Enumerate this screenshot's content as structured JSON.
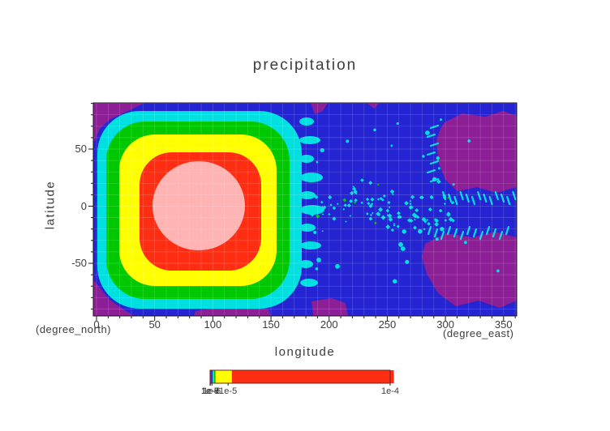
{
  "title": "precipitation",
  "axes": {
    "xlabel": "longitude",
    "ylabel": "latitude",
    "x_unit": "(degree_east)",
    "y_unit": "(degree_north)",
    "x_tick_labels": [
      "0",
      "50",
      "100",
      "150",
      "200",
      "250",
      "300",
      "350"
    ],
    "x_tick_values": [
      0,
      50,
      100,
      150,
      200,
      250,
      300,
      350
    ],
    "y_tick_labels": [
      "50",
      "0",
      "-50"
    ],
    "y_tick_values": [
      50,
      0,
      -50
    ],
    "minor_tick_step": 10
  },
  "colorbar": {
    "orientation": "horizontal",
    "ticks": [
      {
        "label": "1e-9",
        "value": 1e-09
      },
      {
        "label": "1e-8",
        "value": 1e-08
      },
      {
        "label": "1e-7",
        "value": 1e-07
      },
      {
        "label": "1e-6",
        "value": 1e-06
      },
      {
        "label": "1e-5",
        "value": 1e-05
      },
      {
        "label": "1e-4",
        "value": 0.0001
      }
    ]
  },
  "palette": {
    "purple": "#8c1e96",
    "blue": "#2424d2",
    "cyan": "#00e0e0",
    "green": "#00c800",
    "yellow": "#ffff00",
    "red": "#ff2d12",
    "pink": "#ffb3b3",
    "axis": "#1a1a1a",
    "text": "#3c3c3c",
    "grid": "#ffffff",
    "bar_frame": "#6b2424",
    "background": "#ffffff"
  },
  "chart_data": {
    "type": "heatmap",
    "variant": "filled_contour_map",
    "title": "precipitation",
    "xlabel": "longitude",
    "x_unit": "degree_east",
    "ylabel": "latitude",
    "y_unit": "degree_north",
    "xlim": [
      0,
      360
    ],
    "ylim": [
      -90,
      90
    ],
    "grid": true,
    "legend_position": "bottom-colorbar",
    "contour_levels": [
      1e-09,
      1e-08,
      1e-07,
      1e-06,
      1e-05,
      0.0001
    ],
    "level_colors": [
      "#8c1e96",
      "#2424d2",
      "#00e0e0",
      "#00c800",
      "#ffff00",
      "#ff2d12",
      "#ffb3b3"
    ],
    "colorbar_range": [
      1e-09,
      0.0001
    ],
    "features": [
      {
        "name": "primary-maximum",
        "center_lon": 90,
        "center_lat": 0,
        "lon_extent": [
          0,
          175
        ],
        "lat_extent": [
          -85,
          85
        ],
        "peak_value": ">= 1e-4",
        "description": "Large concentric precipitation maximum with nested contour rings (cyan, green, yellow, red, pink core) centered near 90 degrees east on the equator"
      },
      {
        "name": "equatorial-speckle-band",
        "lon_extent": [
          180,
          310
        ],
        "lat_extent": [
          -15,
          15
        ],
        "level": "~1e-7",
        "description": "Scattered small higher-value cells along the equator in the eastern half of the map"
      },
      {
        "name": "low-value-patches",
        "level": "< 1e-9",
        "description": "Purple minima along the map edges plus two large patches near 290-360E at northern and southern mid-latitudes; the remaining background field (blue) lies between the two lowest contour levels"
      }
    ]
  }
}
